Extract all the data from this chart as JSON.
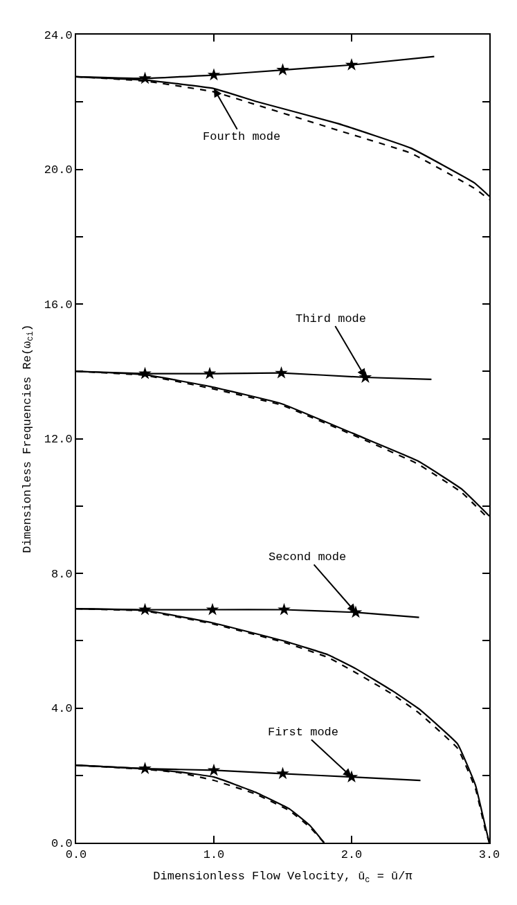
{
  "chart_data": {
    "type": "line",
    "xlabel": "Dimensionless Flow Velocity, ū$_{c}$ = ū/π",
    "ylabel": "Dimensionless Frequencies Re(ω$_{ci}$)",
    "xlim": [
      0,
      3.0
    ],
    "ylim": [
      0,
      24.0
    ],
    "xticks": [
      {
        "value": 0,
        "label": "0.0"
      },
      {
        "value": 1,
        "label": "1.0"
      },
      {
        "value": 2,
        "label": "2.0"
      },
      {
        "value": 3,
        "label": "3.0"
      }
    ],
    "yticks": [
      {
        "value": 0,
        "label": "0.0"
      },
      {
        "value": 2,
        "label": null
      },
      {
        "value": 4,
        "label": "4.0"
      },
      {
        "value": 6,
        "label": null
      },
      {
        "value": 8,
        "label": "8.0"
      },
      {
        "value": 10,
        "label": null
      },
      {
        "value": 12,
        "label": "12.0"
      },
      {
        "value": 14,
        "label": null
      },
      {
        "value": 16,
        "label": "16.0"
      },
      {
        "value": 18,
        "label": null
      },
      {
        "value": 20,
        "label": "20.0"
      },
      {
        "value": 22,
        "label": null
      },
      {
        "value": 24,
        "label": "24.0"
      }
    ],
    "series": [
      {
        "line_style": "solid",
        "color": "#000000",
        "x": [
          0,
          0.5,
          1.0,
          1.32,
          1.9,
          2.43,
          2.89,
          3.0
        ],
        "values": [
          22.75,
          22.65,
          22.4,
          22.0,
          21.36,
          20.63,
          19.6,
          19.2
        ]
      },
      {
        "line_style": "dashed",
        "color": "#000000",
        "x": [
          0,
          0.5,
          1.0,
          1.32,
          1.9,
          2.43,
          2.89,
          3.0
        ],
        "values": [
          22.75,
          22.62,
          22.3,
          21.9,
          21.16,
          20.48,
          19.44,
          19.1
        ]
      },
      {
        "line_style": "solid",
        "color": "#000000",
        "x": [
          0,
          0.5,
          1.0,
          1.5,
          2.0,
          2.6
        ],
        "values": [
          22.75,
          22.7,
          22.8,
          22.95,
          23.1,
          23.35
        ]
      },
      {
        "type": "scatter",
        "marker": "star",
        "color": "#000000",
        "x": [
          0.5,
          1.0,
          1.5,
          2.0
        ],
        "values": [
          22.7,
          22.8,
          22.95,
          23.1
        ]
      },
      {
        "line_style": "solid",
        "color": "#000000",
        "x": [
          0,
          0.5,
          0.97,
          1.49,
          2.1,
          2.48,
          2.8,
          3.0
        ],
        "values": [
          14.0,
          13.9,
          13.55,
          13.04,
          12.0,
          11.34,
          10.5,
          9.7
        ]
      },
      {
        "line_style": "dashed",
        "color": "#000000",
        "x": [
          0,
          0.5,
          0.97,
          1.49,
          2.1,
          2.48,
          2.8,
          3.0
        ],
        "values": [
          14.0,
          13.88,
          13.5,
          13.0,
          11.95,
          11.25,
          10.4,
          9.6
        ]
      },
      {
        "line_style": "solid",
        "color": "#000000",
        "x": [
          0,
          0.5,
          0.97,
          1.49,
          2.1,
          2.58
        ],
        "values": [
          14.0,
          13.93,
          13.93,
          13.95,
          13.82,
          13.76
        ]
      },
      {
        "type": "scatter",
        "marker": "star",
        "color": "#000000",
        "x": [
          0.5,
          0.97,
          1.49,
          2.1
        ],
        "values": [
          13.93,
          13.93,
          13.95,
          13.82
        ]
      },
      {
        "line_style": "solid",
        "color": "#000000",
        "x": [
          0,
          0.5,
          0.99,
          1.51,
          1.83,
          2.03,
          2.3,
          2.49,
          2.77,
          2.9,
          2.97,
          3.0
        ],
        "values": [
          6.95,
          6.9,
          6.53,
          5.99,
          5.58,
          5.17,
          4.5,
          3.97,
          2.93,
          1.7,
          0.5,
          0
        ]
      },
      {
        "line_style": "dashed",
        "color": "#000000",
        "x": [
          0,
          0.5,
          0.99,
          1.51,
          1.83,
          2.03,
          2.3,
          2.49,
          2.77,
          2.9,
          2.97,
          3.0
        ],
        "values": [
          6.95,
          6.88,
          6.5,
          5.95,
          5.5,
          5.05,
          4.4,
          3.85,
          2.8,
          1.6,
          0.4,
          0
        ]
      },
      {
        "line_style": "solid",
        "color": "#000000",
        "x": [
          0,
          0.5,
          0.99,
          1.51,
          2.03,
          2.49
        ],
        "values": [
          6.95,
          6.92,
          6.92,
          6.92,
          6.84,
          6.69
        ]
      },
      {
        "type": "scatter",
        "marker": "star",
        "color": "#000000",
        "x": [
          0.5,
          0.99,
          1.51,
          2.03
        ],
        "values": [
          6.92,
          6.92,
          6.92,
          6.84
        ]
      },
      {
        "line_style": "solid",
        "color": "#000000",
        "x": [
          0,
          0.5,
          0.75,
          1.0,
          1.3,
          1.55,
          1.7,
          1.8
        ],
        "values": [
          2.3,
          2.2,
          2.1,
          1.95,
          1.5,
          1.0,
          0.5,
          0
        ]
      },
      {
        "line_style": "dashed",
        "color": "#000000",
        "x": [
          0,
          0.5,
          0.75,
          1.0,
          1.3,
          1.55,
          1.7,
          1.8
        ],
        "values": [
          2.3,
          2.18,
          2.08,
          1.85,
          1.45,
          0.95,
          0.45,
          0
        ]
      },
      {
        "line_style": "solid",
        "color": "#000000",
        "x": [
          0,
          0.5,
          1.0,
          1.5,
          2.0,
          2.5
        ],
        "values": [
          2.3,
          2.2,
          2.15,
          2.05,
          1.95,
          1.85
        ]
      },
      {
        "type": "scatter",
        "marker": "star",
        "color": "#000000",
        "x": [
          0.5,
          1.0,
          1.5,
          2.0
        ],
        "values": [
          2.2,
          2.15,
          2.05,
          1.95
        ]
      }
    ],
    "annotations": [
      {
        "text": "Fourth mode",
        "x": 1.0,
        "y": 22.4
      },
      {
        "text": "Third mode",
        "x": 2.1,
        "y": 13.82
      },
      {
        "text": "Second mode",
        "x": 2.03,
        "y": 6.84
      },
      {
        "text": "First mode",
        "x": 2.0,
        "y": 1.95
      }
    ]
  }
}
